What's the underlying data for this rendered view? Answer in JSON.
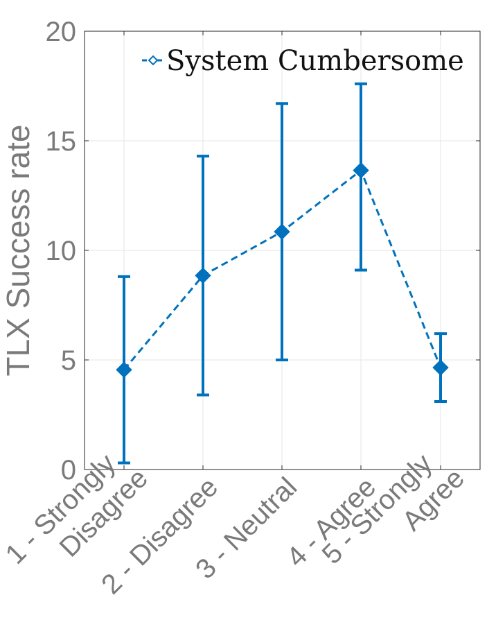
{
  "chart_data": {
    "type": "line",
    "title": "",
    "xlabel": "",
    "ylabel": "TLX Success rate",
    "ylim": [
      0,
      20
    ],
    "yticks": [
      0,
      5,
      10,
      15,
      20
    ],
    "grid": true,
    "legend_position": "top-right",
    "categories": [
      [
        "1 - Strongly",
        "Disagree"
      ],
      [
        "2 - Disagree"
      ],
      [
        "3 - Neutral"
      ],
      [
        "4 - Agree"
      ],
      [
        "5 - Strongly",
        "Agree"
      ]
    ],
    "series": [
      {
        "name": "System Cumbersome",
        "color": "#0072BD",
        "line_style": "dashed",
        "marker": "diamond",
        "values": [
          4.55,
          8.85,
          10.85,
          13.65,
          4.65
        ],
        "error_low": [
          0.3,
          3.4,
          5.0,
          9.1,
          3.1
        ],
        "error_high": [
          8.8,
          14.3,
          16.7,
          17.6,
          6.2
        ]
      }
    ]
  }
}
